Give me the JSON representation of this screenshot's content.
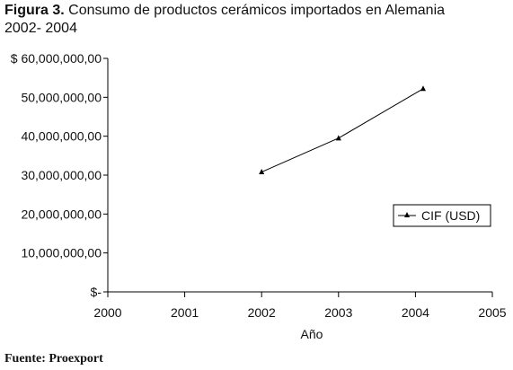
{
  "caption": {
    "label": "Figura 3.",
    "text": " Consumo de productos cerámicos importados en Alemania 2002- 2004"
  },
  "source": "Fuente: Proexport",
  "chart_data": {
    "type": "scatter",
    "title": "Figura 3. Consumo de productos cerámicos importados en Alemania 2002- 2004",
    "xlabel": "Año",
    "ylabel": "",
    "xlim": [
      2000,
      2005
    ],
    "ylim": [
      0,
      60000000
    ],
    "x_ticks": [
      "2000",
      "2001",
      "2002",
      "2003",
      "2004",
      "2005"
    ],
    "y_ticks": [
      "$-",
      "10,000,000,00",
      "20,000,000,00",
      "30,000,000,00",
      "40,000,000,00",
      "50,000,000,00",
      "$ 60,000,000,00"
    ],
    "y_tick_values": [
      0,
      10000000,
      20000000,
      30000000,
      40000000,
      50000000,
      60000000
    ],
    "grid": false,
    "legend_position": "right",
    "series": [
      {
        "name": "CIF (USD)",
        "x": [
          2002,
          2003,
          2004.1
        ],
        "y": [
          30800000,
          39500000,
          52200000
        ],
        "color": "#000000",
        "marker": "triangle"
      }
    ]
  }
}
